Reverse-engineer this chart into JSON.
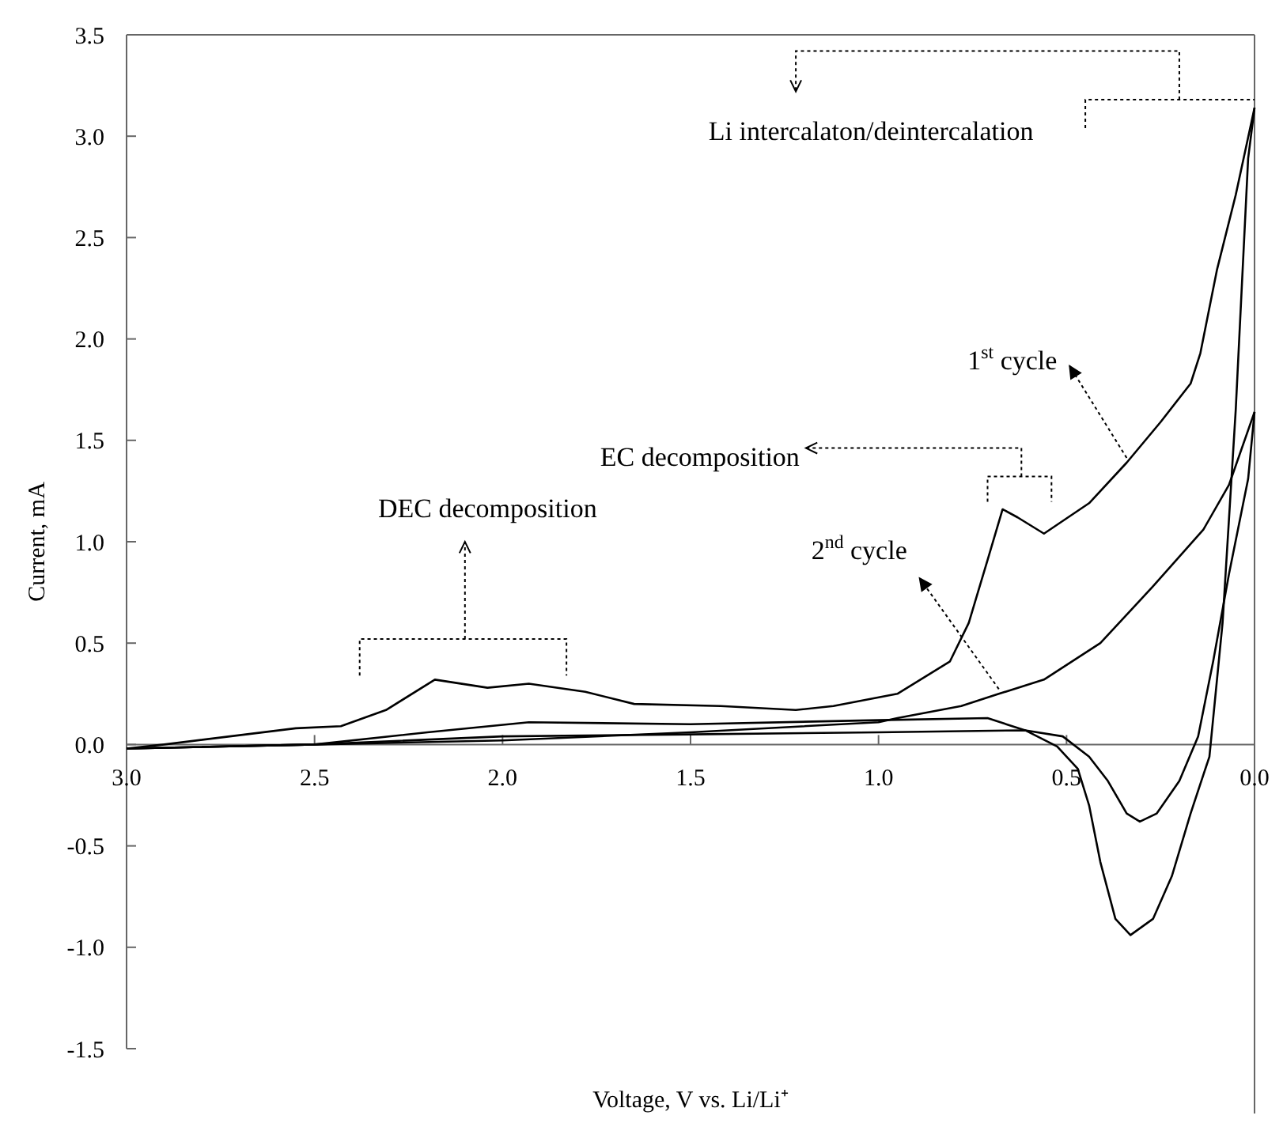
{
  "chart_data": {
    "type": "line",
    "xlabel": "Voltage, V vs. Li/Li⁺",
    "ylabel": "Current, mA",
    "xlim": [
      3.0,
      0.0
    ],
    "ylim": [
      -1.5,
      3.5
    ],
    "xticks": [
      {
        "value": 3,
        "label": "3.0"
      },
      {
        "value": 2.5,
        "label": "2.5"
      },
      {
        "value": 2,
        "label": "2.0"
      },
      {
        "value": 1.5,
        "label": "1.5"
      },
      {
        "value": 1,
        "label": "1.0"
      },
      {
        "value": 0.5,
        "label": "0.5"
      },
      {
        "value": 0,
        "label": "0.0"
      }
    ],
    "yticks": [
      {
        "value": 3.5,
        "label": "3.5"
      },
      {
        "value": 3,
        "label": "3.0"
      },
      {
        "value": 2.5,
        "label": "2.5"
      },
      {
        "value": 2,
        "label": "2.0"
      },
      {
        "value": 1.5,
        "label": "1.5"
      },
      {
        "value": 1,
        "label": "1.0"
      },
      {
        "value": 0.5,
        "label": "0.5"
      },
      {
        "value": 0,
        "label": "0.0"
      },
      {
        "value": -0.5,
        "label": "-0.5"
      },
      {
        "value": -1,
        "label": "-1.0"
      },
      {
        "value": -1.5,
        "label": "-1.5"
      }
    ],
    "grid": false,
    "marker": "none",
    "line_style": "solid",
    "series": [
      {
        "color": "#000000",
        "x": [
          3.0,
          2.9,
          2.55,
          2.43,
          2.31,
          2.18,
          2.04,
          1.93,
          1.78,
          1.65,
          1.42,
          1.22,
          1.12,
          0.95,
          0.81,
          0.76,
          0.71,
          0.67,
          0.63,
          0.56,
          0.44,
          0.34,
          0.25,
          0.17,
          0.144,
          0.1,
          0.05,
          0.0
        ],
        "values": [
          -0.02,
          0.0,
          0.08,
          0.09,
          0.17,
          0.32,
          0.28,
          0.3,
          0.26,
          0.2,
          0.19,
          0.17,
          0.19,
          0.25,
          0.41,
          0.6,
          0.91,
          1.16,
          1.12,
          1.04,
          1.19,
          1.39,
          1.59,
          1.78,
          1.93,
          2.34,
          2.71,
          3.14
        ]
      },
      {
        "color": "#000000",
        "x": [
          0.0,
          0.017,
          0.05,
          0.085,
          0.12,
          0.17,
          0.22,
          0.27,
          0.33,
          0.37,
          0.41,
          0.44,
          0.47,
          0.525,
          0.61,
          0.71,
          1.0,
          1.5,
          1.93,
          2.2,
          2.5,
          3.0
        ],
        "values": [
          3.14,
          2.89,
          1.65,
          0.6,
          -0.06,
          -0.34,
          -0.65,
          -0.86,
          -0.94,
          -0.86,
          -0.58,
          -0.3,
          -0.12,
          -0.01,
          0.07,
          0.13,
          0.12,
          0.1,
          0.11,
          0.06,
          0.0,
          -0.02
        ]
      },
      {
        "color": "#000000",
        "x": [
          3.0,
          2.5,
          2.0,
          1.5,
          1.0,
          0.95,
          0.78,
          0.68,
          0.56,
          0.41,
          0.27,
          0.136,
          0.068,
          0.0
        ],
        "values": [
          -0.02,
          0.0,
          0.02,
          0.06,
          0.11,
          0.13,
          0.19,
          0.25,
          0.32,
          0.5,
          0.78,
          1.06,
          1.28,
          1.64
        ]
      },
      {
        "color": "#000000",
        "x": [
          0.0,
          0.017,
          0.068,
          0.11,
          0.15,
          0.2,
          0.26,
          0.305,
          0.34,
          0.39,
          0.44,
          0.51,
          0.61,
          1.0,
          1.5,
          2.0,
          2.5,
          3.0
        ],
        "values": [
          1.64,
          1.31,
          0.84,
          0.41,
          0.04,
          -0.18,
          -0.34,
          -0.38,
          -0.34,
          -0.18,
          -0.06,
          0.04,
          0.07,
          0.06,
          0.05,
          0.04,
          0.0,
          -0.02
        ]
      }
    ],
    "annotations": [
      "Li intercalaton/deintercalation",
      "EC decomposition",
      "DEC decomposition",
      {
        "text": "1$^{st}$ cycle",
        "x": 0.34,
        "y": 1.39
      },
      {
        "text": "2$^{nd}$ cycle",
        "x": 0.68,
        "y": 0.25
      }
    ]
  }
}
